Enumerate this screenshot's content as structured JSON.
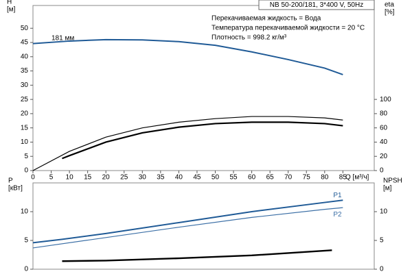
{
  "chart_data": [
    {
      "type": "line",
      "title": "NB 50-200/181, 3*400 V, 50Hz",
      "annotations": [
        "Перекачиваемая жидкость = Вода",
        "Температура перекачиваемой жидкости = 20 °C",
        "Плотность = 998.2 кг/м³"
      ],
      "curve_label": "181 мм",
      "ylabel": [
        "H",
        "[м]"
      ],
      "y2label": [
        "eta",
        "[%]"
      ],
      "xlabel": "Q [м³/ч]",
      "xlim": [
        0,
        93.6
      ],
      "xticks": [
        0,
        5,
        10,
        15,
        20,
        25,
        30,
        35,
        40,
        45,
        50,
        55,
        60,
        65,
        70,
        75,
        80,
        85
      ],
      "ylim": [
        0,
        58
      ],
      "yticks": [
        0,
        5,
        10,
        15,
        20,
        25,
        30,
        35,
        40,
        45,
        50
      ],
      "y2lim": [
        0,
        232
      ],
      "y2ticks": [
        0,
        20,
        40,
        60,
        80,
        100
      ],
      "series": [
        {
          "color": "#1f5a96",
          "width": 2,
          "x": [
            0,
            10,
            20,
            30,
            40,
            50,
            60,
            70,
            80,
            85
          ],
          "values": [
            44.6,
            45.5,
            46,
            45.9,
            45.3,
            44,
            41.7,
            39,
            36,
            33.7
          ]
        },
        {
          "color": "#000000",
          "width": 1.2,
          "axis": "y2",
          "x": [
            0,
            10,
            20,
            30,
            40,
            50,
            60,
            70,
            80,
            85
          ],
          "values": [
            0,
            27,
            47,
            60,
            68,
            73,
            76,
            76,
            74,
            71
          ]
        },
        {
          "color": "#000000",
          "width": 2.2,
          "axis": "y2",
          "x": [
            8,
            10,
            20,
            30,
            40,
            50,
            60,
            70,
            80,
            85
          ],
          "values": [
            17,
            21,
            40,
            53,
            61,
            66,
            68,
            68,
            66,
            63
          ]
        }
      ]
    },
    {
      "type": "line",
      "ylabel": [
        "P",
        "[кВт]"
      ],
      "y2label": [
        "NPSH",
        "[м]"
      ],
      "xlim": [
        0,
        93.6
      ],
      "ylim": [
        0,
        15
      ],
      "yticks": [
        0,
        5,
        10
      ],
      "y2lim": [
        0,
        15
      ],
      "y2ticks": [
        0,
        5,
        10
      ],
      "series": [
        {
          "name": "P1",
          "color": "#1f5a96",
          "width": 2,
          "x": [
            0,
            8,
            20,
            40,
            60,
            80,
            85
          ],
          "values": [
            4.6,
            5.2,
            6.2,
            8.1,
            10,
            11.6,
            12
          ]
        },
        {
          "name": "P2",
          "color": "#3a6ea5",
          "width": 1.2,
          "x": [
            0,
            20,
            40,
            60,
            80,
            85
          ],
          "values": [
            3.7,
            5.5,
            7.3,
            9,
            10.4,
            10.7
          ]
        },
        {
          "color": "#000000",
          "width": 2.4,
          "axis": "y2",
          "x": [
            8,
            20,
            40,
            60,
            82
          ],
          "values": [
            1.4,
            1.5,
            1.9,
            2.4,
            3.3
          ]
        }
      ]
    }
  ]
}
